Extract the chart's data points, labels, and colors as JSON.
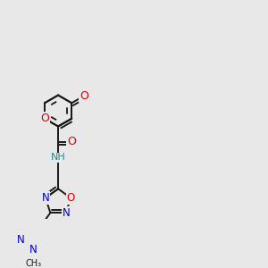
{
  "bg_color": "#e8e8e8",
  "bond_color": "#1a1a1a",
  "bond_width": 1.4,
  "dbo": 0.013,
  "atom_colors": {
    "O": "#dd0000",
    "N": "#0000cc",
    "H": "#2a8a8a",
    "C": "#1a1a1a"
  },
  "afs": 8.5,
  "figsize": [
    3.0,
    3.0
  ],
  "dpi": 100,
  "xlim": [
    0.0,
    1.0
  ],
  "ylim": [
    0.0,
    1.0
  ]
}
